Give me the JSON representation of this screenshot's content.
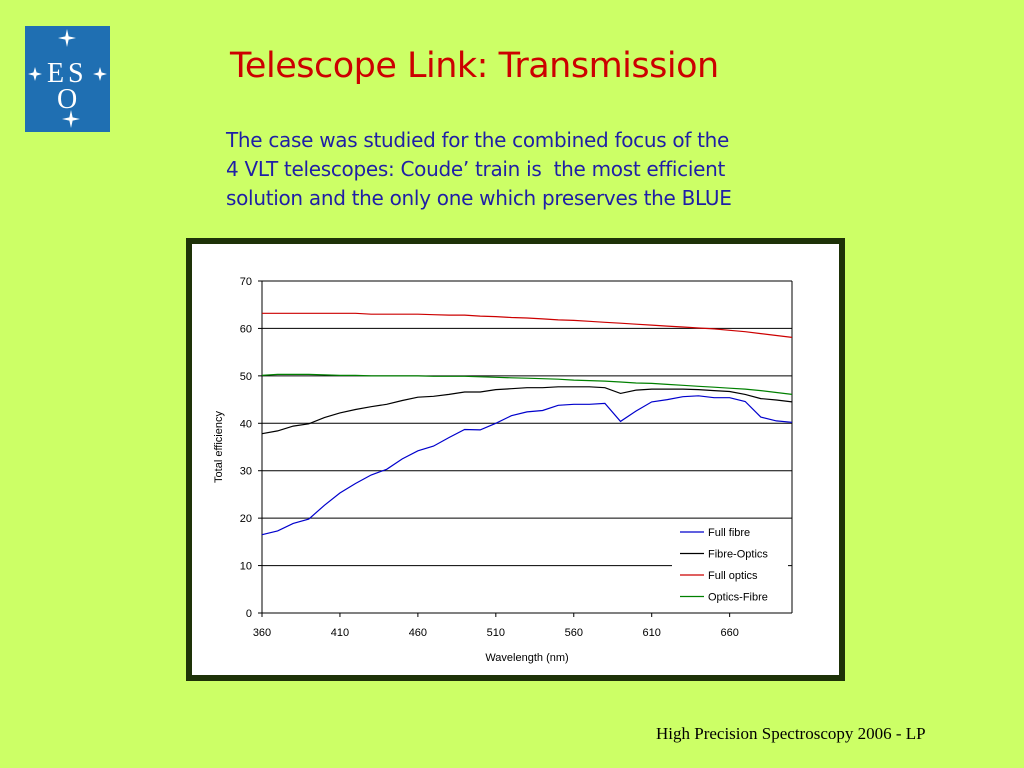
{
  "title": "Telescope Link: Transmission",
  "subtitle_lines": [
    "The case was studied for the combined focus of the",
    "4 VLT telescopes: Coude’ train is  the most efficient",
    "solution and the only one which preserves the BLUE"
  ],
  "footer": "High Precision Spectroscopy 2006 - LP",
  "logo": {
    "letters": [
      "E",
      "S",
      "O"
    ],
    "color": "#1f6fb2"
  },
  "chart_data": {
    "type": "line",
    "xlabel": "Wavelength (nm)",
    "ylabel": "Total efficiency",
    "xlim": [
      360,
      700
    ],
    "ylim": [
      0,
      70
    ],
    "x_ticks": [
      360,
      410,
      460,
      510,
      560,
      610,
      660
    ],
    "y_ticks": [
      0,
      10,
      20,
      30,
      40,
      50,
      60,
      70
    ],
    "grid": "horizontal",
    "legend_position": "bottom-right",
    "x": [
      360,
      370,
      380,
      390,
      400,
      410,
      420,
      430,
      440,
      450,
      460,
      470,
      480,
      490,
      500,
      510,
      520,
      530,
      540,
      550,
      560,
      570,
      580,
      590,
      600,
      610,
      620,
      630,
      640,
      650,
      660,
      670,
      680,
      690,
      700
    ],
    "series": [
      {
        "name": "Full fibre",
        "color": "#0000cc",
        "values": [
          16.5,
          17.3,
          18.9,
          19.8,
          22.7,
          25.3,
          27.3,
          29.1,
          30.3,
          32.5,
          34.2,
          35.2,
          37.0,
          38.7,
          38.6,
          40.0,
          41.6,
          42.4,
          42.7,
          43.8,
          44.0,
          44.0,
          44.2,
          40.4,
          42.6,
          44.5,
          45.0,
          45.6,
          45.8,
          45.4,
          45.4,
          44.6,
          41.3,
          40.5,
          40.2
        ]
      },
      {
        "name": "Fibre-Optics",
        "color": "#000000",
        "values": [
          37.8,
          38.4,
          39.4,
          39.9,
          41.2,
          42.2,
          42.9,
          43.5,
          44.0,
          44.8,
          45.5,
          45.7,
          46.1,
          46.6,
          46.6,
          47.1,
          47.3,
          47.5,
          47.5,
          47.7,
          47.7,
          47.7,
          47.5,
          46.3,
          47.0,
          47.2,
          47.2,
          47.2,
          47.1,
          46.9,
          46.7,
          46.1,
          45.2,
          44.9,
          44.5
        ]
      },
      {
        "name": "Full optics",
        "color": "#cc0000",
        "values": [
          63.2,
          63.2,
          63.2,
          63.2,
          63.2,
          63.2,
          63.2,
          63.0,
          63.0,
          63.0,
          63.0,
          62.9,
          62.8,
          62.8,
          62.6,
          62.5,
          62.3,
          62.2,
          62.0,
          61.8,
          61.7,
          61.5,
          61.3,
          61.1,
          60.9,
          60.7,
          60.5,
          60.3,
          60.1,
          59.9,
          59.6,
          59.3,
          58.9,
          58.5,
          58.1
        ]
      },
      {
        "name": "Optics-Fibre",
        "color": "#008000",
        "values": [
          50.1,
          50.3,
          50.3,
          50.3,
          50.2,
          50.1,
          50.1,
          50.0,
          50.0,
          50.0,
          50.0,
          49.9,
          49.9,
          49.9,
          49.8,
          49.7,
          49.6,
          49.5,
          49.4,
          49.3,
          49.1,
          49.0,
          48.9,
          48.7,
          48.5,
          48.4,
          48.2,
          48.0,
          47.8,
          47.6,
          47.4,
          47.2,
          46.9,
          46.5,
          46.1
        ]
      }
    ]
  }
}
